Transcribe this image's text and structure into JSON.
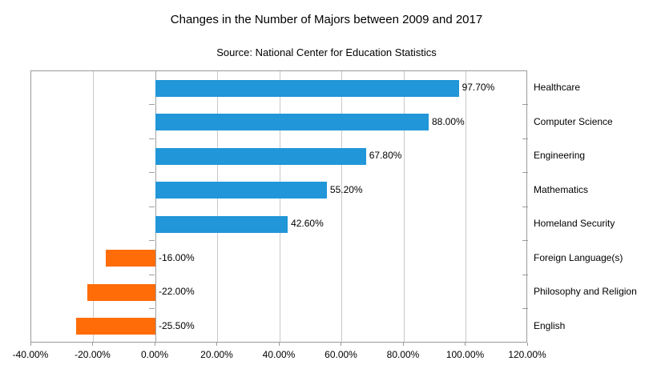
{
  "title": "Changes in the Number of Majors between 2009 and 2017",
  "subtitle": "Source: National Center for Education Statistics",
  "colors": {
    "positive_bar": "#2196d8",
    "negative_bar": "#ff6c08",
    "gridline": "#c9c9c9",
    "plot_border": "#9a9a9a",
    "zero_axis": "#a0a0a0",
    "text": "#000000",
    "background": "#ffffff"
  },
  "chart_data": {
    "type": "bar",
    "orientation": "horizontal",
    "title": "Changes in the Number of Majors between 2009 and 2017",
    "subtitle": "Source: National Center for Education Statistics",
    "categories": [
      "Healthcare",
      "Computer Science",
      "Engineering",
      "Mathematics",
      "Homeland Security",
      "Foreign Language(s)",
      "Philosophy and Religion",
      "English"
    ],
    "values": [
      97.7,
      88.0,
      67.8,
      55.2,
      42.6,
      -16.0,
      -22.0,
      -25.5
    ],
    "value_labels": [
      "97.70%",
      "88.00%",
      "67.80%",
      "55.20%",
      "42.60%",
      "-16.00%",
      "-22.00%",
      "-25.50%"
    ],
    "x_tick_values": [
      -40,
      -20,
      0,
      20,
      40,
      60,
      80,
      100,
      120
    ],
    "x_tick_labels": [
      "-40.00%",
      "-20.00%",
      "0.00%",
      "20.00%",
      "40.00%",
      "60.00%",
      "80.00%",
      "100.00%",
      "120.00%"
    ],
    "xlim": [
      -40,
      120
    ],
    "grid": true,
    "legend": "none",
    "xlabel": "",
    "ylabel": ""
  }
}
